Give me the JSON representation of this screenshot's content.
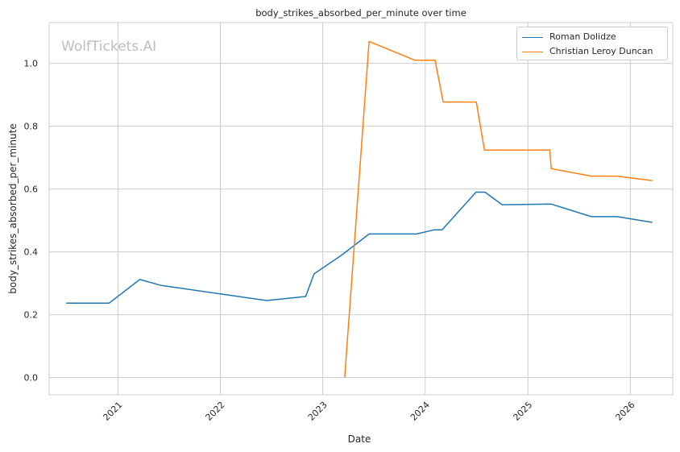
{
  "watermark": "WolfTickets.AI",
  "chart_data": {
    "type": "line",
    "title": "body_strikes_absorbed_per_minute over time",
    "xlabel": "Date",
    "ylabel": "body_strikes_absorbed_per_minute",
    "x_ticks": [
      "2021",
      "2022",
      "2023",
      "2024",
      "2025",
      "2026"
    ],
    "y_ticks": [
      "0.0",
      "0.2",
      "0.4",
      "0.6",
      "0.8",
      "1.0"
    ],
    "xlim": [
      "2020-05-01",
      "2026-06-01"
    ],
    "ylim": [
      -0.055,
      1.13
    ],
    "grid": true,
    "legend_position": "top-right",
    "series": [
      {
        "name": "Roman Dolidze",
        "color": "#1f77b4",
        "points": [
          [
            "2020-07-01",
            0.237
          ],
          [
            "2020-12-01",
            0.237
          ],
          [
            "2021-03-20",
            0.312
          ],
          [
            "2021-06-05",
            0.293
          ],
          [
            "2022-06-15",
            0.245
          ],
          [
            "2022-11-01",
            0.258
          ],
          [
            "2022-12-01",
            0.33
          ],
          [
            "2023-03-10",
            0.39
          ],
          [
            "2023-06-15",
            0.457
          ],
          [
            "2023-12-01",
            0.457
          ],
          [
            "2024-02-01",
            0.47
          ],
          [
            "2024-03-01",
            0.47
          ],
          [
            "2024-06-30",
            0.59
          ],
          [
            "2024-08-01",
            0.59
          ],
          [
            "2024-10-01",
            0.55
          ],
          [
            "2025-03-25",
            0.552
          ],
          [
            "2025-08-15",
            0.512
          ],
          [
            "2025-11-15",
            0.512
          ],
          [
            "2026-03-20",
            0.494
          ]
        ]
      },
      {
        "name": "Christian Leroy Duncan",
        "color": "#ff7f0e",
        "points": [
          [
            "2023-03-20",
            0.0
          ],
          [
            "2023-06-15",
            1.07
          ],
          [
            "2023-11-25",
            1.01
          ],
          [
            "2024-02-05",
            1.01
          ],
          [
            "2024-03-05",
            0.877
          ],
          [
            "2024-07-01",
            0.877
          ],
          [
            "2024-07-30",
            0.724
          ],
          [
            "2025-03-20",
            0.724
          ],
          [
            "2025-03-25",
            0.665
          ],
          [
            "2025-08-15",
            0.641
          ],
          [
            "2025-11-15",
            0.641
          ],
          [
            "2026-03-20",
            0.627
          ]
        ]
      }
    ]
  }
}
